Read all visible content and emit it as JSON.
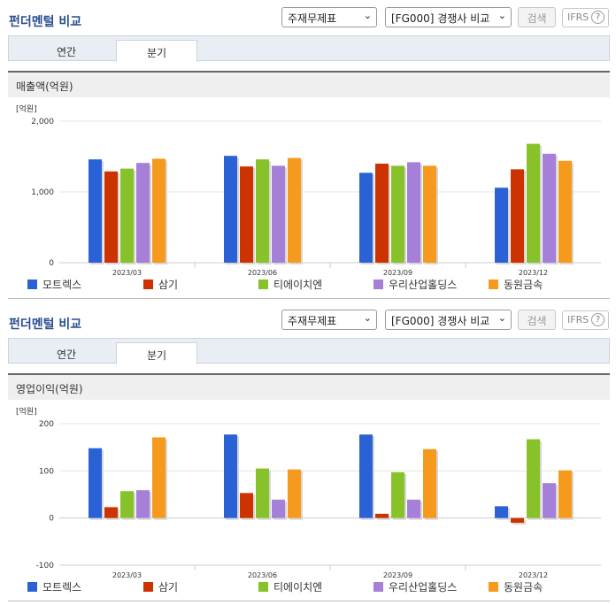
{
  "sections": [
    {
      "title": "펀더멘털 비교",
      "financial_select": "주재무제표",
      "compare_select": "[FG000] 경쟁사 비교",
      "search_label": "검색",
      "ifrs_label": "IFRS",
      "help_label": "?",
      "tabs": [
        {
          "label": "연간"
        },
        {
          "label": "분기"
        }
      ],
      "active_tab": 1,
      "chart_title": "매출액(억원)"
    },
    {
      "title": "펀더멘털 비교",
      "financial_select": "주재무제표",
      "compare_select": "[FG000] 경쟁사 비교",
      "search_label": "검색",
      "ifrs_label": "IFRS",
      "help_label": "?",
      "tabs": [
        {
          "label": "연간"
        },
        {
          "label": "분기"
        }
      ],
      "active_tab": 1,
      "chart_title": "영업이익(억원)"
    }
  ],
  "chart_data": [
    {
      "type": "bar",
      "title": "매출액(억원)",
      "ylabel": "[억원]",
      "ylim": [
        0,
        2000
      ],
      "yticks": [
        0,
        1000,
        2000
      ],
      "ytick_labels": [
        "0",
        "1,000",
        "2,000"
      ],
      "categories": [
        "2023/03",
        "2023/06",
        "2023/09",
        "2023/12"
      ],
      "series": [
        {
          "name": "모트렉스",
          "color": "#2a62d6",
          "values": [
            1460,
            1510,
            1270,
            1060
          ]
        },
        {
          "name": "삼기",
          "color": "#cc3300",
          "values": [
            1290,
            1360,
            1400,
            1320
          ]
        },
        {
          "name": "티에이치엔",
          "color": "#88c22a",
          "values": [
            1330,
            1460,
            1370,
            1680
          ]
        },
        {
          "name": "우리산업홀딩스",
          "color": "#a67fd9",
          "values": [
            1410,
            1370,
            1420,
            1540
          ]
        },
        {
          "name": "동원금속",
          "color": "#f59a1c",
          "values": [
            1470,
            1480,
            1370,
            1440
          ]
        }
      ],
      "legend_position": "bottom",
      "grid": true
    },
    {
      "type": "bar",
      "title": "영업이익(억원)",
      "ylabel": "[억원]",
      "ylim": [
        -100,
        200
      ],
      "yticks": [
        -100,
        0,
        100,
        200
      ],
      "ytick_labels": [
        "-100",
        "0",
        "100",
        "200"
      ],
      "categories": [
        "2023/03",
        "2023/06",
        "2023/09",
        "2023/12"
      ],
      "series": [
        {
          "name": "모트렉스",
          "color": "#2a62d6",
          "values": [
            148,
            177,
            177,
            25
          ]
        },
        {
          "name": "삼기",
          "color": "#cc3300",
          "values": [
            23,
            53,
            9,
            -10
          ]
        },
        {
          "name": "티에이치엔",
          "color": "#88c22a",
          "values": [
            57,
            105,
            97,
            167
          ]
        },
        {
          "name": "우리산업홀딩스",
          "color": "#a67fd9",
          "values": [
            59,
            39,
            39,
            74
          ]
        },
        {
          "name": "동원금속",
          "color": "#f59a1c",
          "values": [
            171,
            103,
            146,
            101
          ]
        }
      ],
      "legend_position": "bottom",
      "grid": true
    }
  ]
}
